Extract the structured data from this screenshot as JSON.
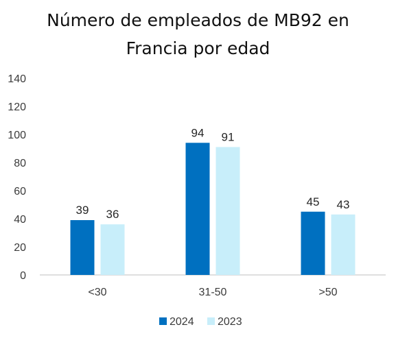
{
  "chart_data": {
    "type": "bar",
    "title_lines": [
      "Número de empleados de MB92 en",
      "Francia por edad"
    ],
    "categories": [
      "<30",
      "31-50",
      ">50"
    ],
    "series": [
      {
        "name": "2024",
        "values": [
          39,
          94,
          45
        ],
        "color": "#0070c0"
      },
      {
        "name": "2023",
        "values": [
          36,
          91,
          43
        ],
        "color": "#c8eefa"
      }
    ],
    "ylim": [
      0,
      140
    ],
    "yticks": [
      0,
      20,
      40,
      60,
      80,
      100,
      120,
      140
    ],
    "grid": false,
    "legend_position": "bottom",
    "data_labels": true
  },
  "colors": {
    "axis_text": "#3a3a3a",
    "data_label": "#262626",
    "axis_line": "#bfbfbf"
  }
}
